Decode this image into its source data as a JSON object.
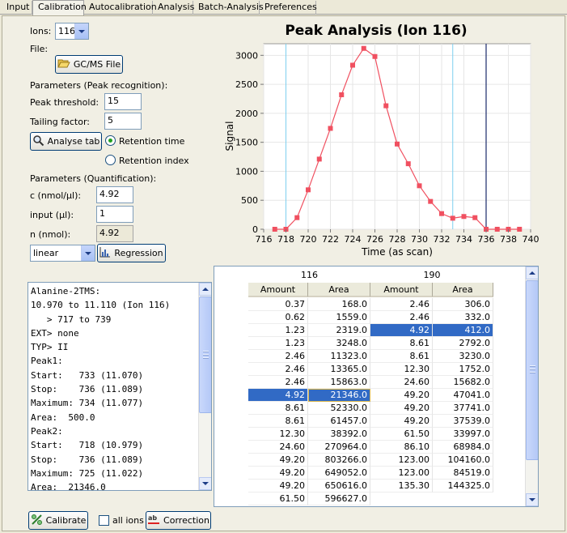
{
  "tabs": [
    "Input",
    "Calibration",
    "Autocalibration",
    "Analysis",
    "Batch-Analysis",
    "Preferences"
  ],
  "active_tab": 1,
  "controls": {
    "ions_label": "Ions:",
    "ions_value": "116",
    "file_label": "File:",
    "gcms_button": "GC/MS File",
    "params_peak_label": "Parameters (Peak recognition):",
    "peak_threshold_label": "Peak threshold:",
    "peak_threshold_value": "15",
    "tailing_factor_label": "Tailing factor:",
    "tailing_factor_value": "5",
    "analyse_tab_button": "Analyse tab",
    "retention_time_label": "Retention time",
    "retention_index_label": "Retention index",
    "retention_selected": "time",
    "params_quant_label": "Parameters (Quantification):",
    "c_label": "c (nmol/µl):",
    "c_value": "4.92",
    "input_label": "input (µl):",
    "input_value": "1",
    "n_label": "n (nmol):",
    "n_value": "4.92",
    "fit_value": "linear",
    "regression_button": "Regression"
  },
  "log_lines": [
    "Alanine-2TMS:",
    "10.970 to 11.110 (Ion 116)",
    "   > 717 to 739",
    "EXT> none",
    "TYP> II",
    "Peak1:",
    "Start:   733 (11.070)",
    "Stop:    736 (11.089)",
    "Maximum: 734 (11.077)",
    "Area:  500.0",
    "Peak2:",
    "Start:   718 (10.979)",
    "Stop:    736 (11.089)",
    "Maximum: 725 (11.022)",
    "Area:  21346.0"
  ],
  "table": {
    "groups": [
      "116",
      "190"
    ],
    "headers": [
      "Amount",
      "Area",
      "Amount",
      "Area"
    ],
    "rows": [
      [
        "0.37",
        "168.0",
        "2.46",
        "306.0"
      ],
      [
        "0.62",
        "1559.0",
        "2.46",
        "332.0"
      ],
      [
        "1.23",
        "2319.0",
        "4.92",
        "412.0"
      ],
      [
        "1.23",
        "3248.0",
        "8.61",
        "2792.0"
      ],
      [
        "2.46",
        "11323.0",
        "8.61",
        "3230.0"
      ],
      [
        "2.46",
        "13365.0",
        "12.30",
        "1752.0"
      ],
      [
        "2.46",
        "15863.0",
        "24.60",
        "15682.0"
      ],
      [
        "4.92",
        "21346.0",
        "49.20",
        "47041.0"
      ],
      [
        "8.61",
        "52330.0",
        "49.20",
        "37741.0"
      ],
      [
        "8.61",
        "61457.0",
        "49.20",
        "37539.0"
      ],
      [
        "12.30",
        "38392.0",
        "61.50",
        "33997.0"
      ],
      [
        "24.60",
        "270964.0",
        "86.10",
        "68984.0"
      ],
      [
        "49.20",
        "803266.0",
        "123.00",
        "104160.0"
      ],
      [
        "49.20",
        "649052.0",
        "123.00",
        "84519.0"
      ],
      [
        "49.20",
        "650616.0",
        "135.30",
        "144325.0"
      ],
      [
        "61.50",
        "596627.0",
        "",
        ""
      ]
    ]
  },
  "bottom": {
    "calibrate_button": "Calibrate",
    "all_ions_label": "all ions",
    "correction_button": "Correction"
  },
  "chart_data": {
    "type": "line",
    "title": "Peak Analysis (Ion 116)",
    "xlabel": "Time (as scan)",
    "ylabel": "Signal",
    "xlim": [
      716,
      740
    ],
    "ylim": [
      0,
      3200
    ],
    "xticks": [
      716,
      718,
      720,
      722,
      724,
      726,
      728,
      730,
      732,
      734,
      736,
      738,
      740
    ],
    "yticks": [
      0,
      500,
      1000,
      1500,
      2000,
      2500,
      3000
    ],
    "x": [
      717,
      718,
      719,
      720,
      721,
      722,
      723,
      724,
      725,
      726,
      727,
      728,
      729,
      730,
      731,
      732,
      733,
      734,
      735,
      736,
      737,
      738,
      739
    ],
    "y": [
      0,
      0,
      200,
      680,
      1210,
      1740,
      2320,
      2830,
      3120,
      2980,
      2130,
      1470,
      1130,
      750,
      480,
      270,
      190,
      220,
      200,
      0,
      0,
      0,
      0
    ],
    "vlines_light": [
      718,
      733
    ],
    "vline_dark": 736,
    "series_color": "#f05060",
    "vline_light_color": "#7ecfef",
    "vline_dark_color": "#1a2a6a",
    "grid": true
  }
}
